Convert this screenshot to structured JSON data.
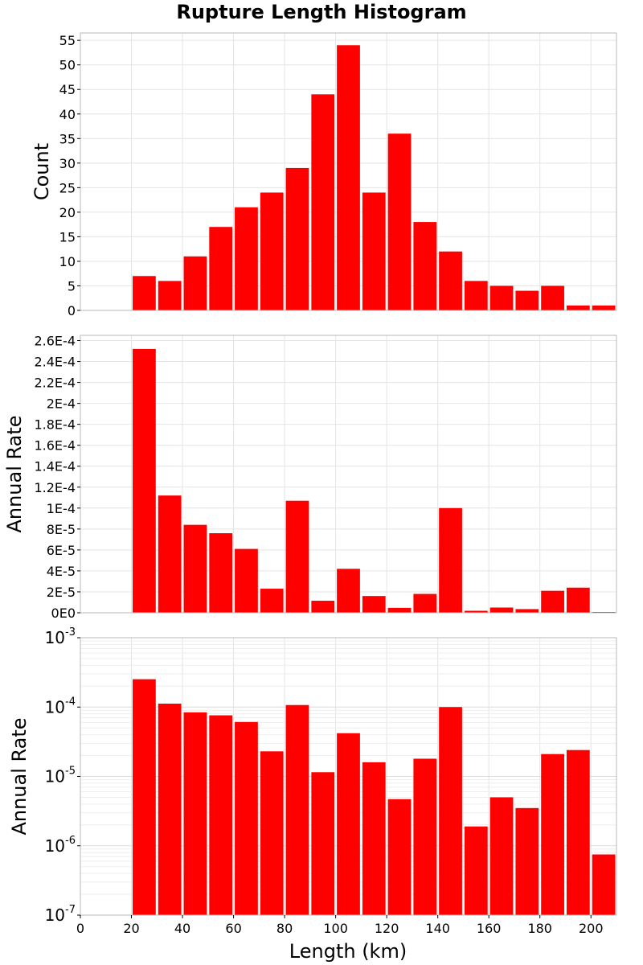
{
  "figure": {
    "title": "Rupture Length Histogram",
    "xlabel": "Length (km)"
  },
  "chart_data": [
    {
      "type": "bar",
      "ylabel": "Count",
      "yscale": "linear",
      "bin_width": 10,
      "x": [
        25,
        35,
        45,
        55,
        65,
        75,
        85,
        95,
        105,
        115,
        125,
        135,
        145,
        155,
        165,
        175,
        185,
        195,
        205
      ],
      "values": [
        7,
        6,
        11,
        17,
        21,
        24,
        29,
        44,
        54,
        24,
        36,
        18,
        12,
        6,
        5,
        4,
        5,
        1,
        1
      ],
      "xlim": [
        0,
        210
      ],
      "ylim": [
        0,
        56.5
      ],
      "yticks": [
        0,
        5,
        10,
        15,
        20,
        25,
        30,
        35,
        40,
        45,
        50,
        55
      ],
      "ytick_labels": [
        "0",
        "5",
        "10",
        "15",
        "20",
        "25",
        "30",
        "35",
        "40",
        "45",
        "50",
        "55"
      ],
      "color": "#ff0000",
      "grid": true
    },
    {
      "type": "bar",
      "ylabel": "Annual Rate",
      "yscale": "linear",
      "bin_width": 10,
      "x": [
        25,
        35,
        45,
        55,
        65,
        75,
        85,
        95,
        105,
        115,
        125,
        135,
        145,
        155,
        165,
        175,
        185,
        195,
        205
      ],
      "values": [
        0.000252,
        0.000112,
        8.4e-05,
        7.6e-05,
        6.1e-05,
        2.3e-05,
        0.000107,
        1.15e-05,
        4.2e-05,
        1.6e-05,
        4.7e-06,
        1.8e-05,
        0.0001,
        1.9e-06,
        5e-06,
        3.5e-06,
        2.1e-05,
        2.4e-05,
        7.5e-07
      ],
      "xlim": [
        0,
        210
      ],
      "ylim": [
        0,
        0.000265
      ],
      "yticks": [
        0,
        2e-05,
        4e-05,
        6e-05,
        8e-05,
        0.0001,
        0.00012,
        0.00014,
        0.00016,
        0.00018,
        0.0002,
        0.00022,
        0.00024,
        0.00026
      ],
      "ytick_labels": [
        "0E0",
        "2E-5",
        "4E-5",
        "6E-5",
        "8E-5",
        "1E-4",
        "1.2E-4",
        "1.4E-4",
        "1.6E-4",
        "1.8E-4",
        "2E-4",
        "2.2E-4",
        "2.4E-4",
        "2.6E-4"
      ],
      "color": "#ff0000",
      "grid": true
    },
    {
      "type": "bar",
      "ylabel": "Annual Rate",
      "yscale": "log",
      "bin_width": 10,
      "x": [
        25,
        35,
        45,
        55,
        65,
        75,
        85,
        95,
        105,
        115,
        125,
        135,
        145,
        155,
        165,
        175,
        185,
        195,
        205
      ],
      "values": [
        0.000252,
        0.000112,
        8.4e-05,
        7.6e-05,
        6.1e-05,
        2.3e-05,
        0.000107,
        1.15e-05,
        4.2e-05,
        1.6e-05,
        4.7e-06,
        1.8e-05,
        0.0001,
        1.9e-06,
        5e-06,
        3.5e-06,
        2.1e-05,
        2.4e-05,
        7.5e-07
      ],
      "xlim": [
        0,
        210
      ],
      "ylim": [
        1e-07,
        0.001
      ],
      "yticks_exp": [
        -7,
        -6,
        -5,
        -4,
        -3
      ],
      "ytick_base": "10",
      "xticks": [
        0,
        20,
        40,
        60,
        80,
        100,
        120,
        140,
        160,
        180,
        200
      ],
      "xtick_labels": [
        "0",
        "20",
        "40",
        "60",
        "80",
        "100",
        "120",
        "140",
        "160",
        "180",
        "200"
      ],
      "color": "#ff0000",
      "grid": true
    }
  ]
}
